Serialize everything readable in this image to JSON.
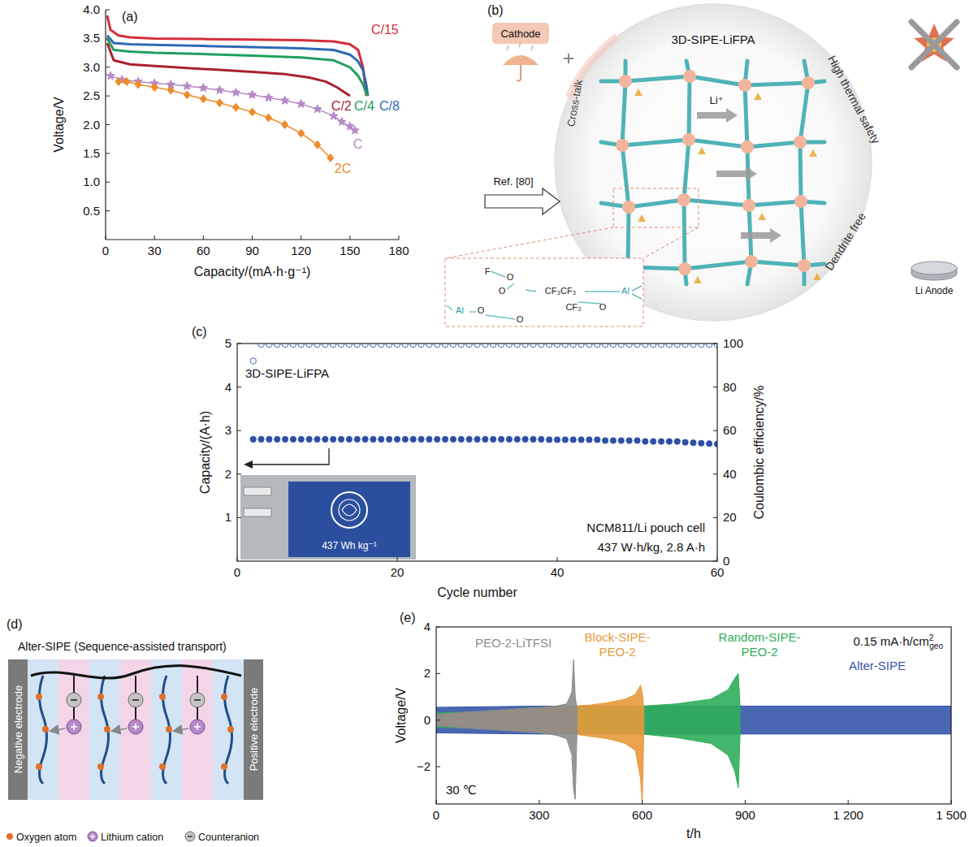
{
  "chart_data": [
    {
      "type": "line",
      "panel": "(a)",
      "x_label": "Capacity/(mA·h·g⁻¹)",
      "y_label": "Voltage/V",
      "xlim": [
        0,
        180
      ],
      "ylim": [
        0,
        4
      ],
      "xticks": [
        0,
        30,
        60,
        90,
        120,
        150,
        180
      ],
      "yticks": [
        0.5,
        {
          "value": 1,
          "label": "1.0"
        },
        1.5,
        {
          "value": 2,
          "label": "2.0"
        },
        2.5,
        {
          "value": 3,
          "label": "3.0"
        },
        3.5,
        {
          "value": 4,
          "label": "4.0"
        }
      ],
      "grid": false,
      "series": [
        {
          "name": "C/15",
          "color": "#d42e3c",
          "marker": "none",
          "line_style": "solid",
          "x": [
            1,
            3,
            8,
            15,
            30,
            60,
            90,
            120,
            140,
            150,
            155,
            158,
            160
          ],
          "values": [
            3.9,
            3.65,
            3.55,
            3.52,
            3.5,
            3.49,
            3.48,
            3.47,
            3.45,
            3.4,
            3.3,
            3.0,
            2.5
          ]
        },
        {
          "name": "C/8",
          "color": "#2d6ab5",
          "marker": "none",
          "line_style": "solid",
          "x": [
            1,
            5,
            15,
            30,
            60,
            90,
            120,
            140,
            150,
            155,
            158,
            160,
            161
          ],
          "values": [
            3.55,
            3.42,
            3.4,
            3.39,
            3.37,
            3.35,
            3.33,
            3.3,
            3.22,
            3.1,
            2.95,
            2.7,
            2.5
          ]
        },
        {
          "name": "C/4",
          "color": "#20a060",
          "marker": "none",
          "line_style": "solid",
          "x": [
            1,
            5,
            15,
            30,
            60,
            90,
            120,
            140,
            150,
            155,
            158,
            160,
            161
          ],
          "values": [
            3.5,
            3.3,
            3.27,
            3.25,
            3.23,
            3.2,
            3.17,
            3.12,
            3.0,
            2.85,
            2.7,
            2.55,
            2.5
          ]
        },
        {
          "name": "C/2",
          "color": "#a8222e",
          "marker": "none",
          "line_style": "solid",
          "x": [
            1,
            5,
            15,
            30,
            60,
            90,
            110,
            125,
            135,
            142,
            150
          ],
          "values": [
            3.42,
            3.12,
            3.05,
            3.02,
            2.97,
            2.92,
            2.88,
            2.82,
            2.75,
            2.65,
            2.5
          ]
        },
        {
          "name": "C",
          "color": "#b58ac8",
          "marker": "star",
          "line_style": "solid",
          "x": [
            3,
            10,
            20,
            30,
            40,
            50,
            60,
            70,
            80,
            90,
            100,
            110,
            120,
            130,
            140,
            145,
            150,
            153
          ],
          "values": [
            2.85,
            2.78,
            2.75,
            2.72,
            2.7,
            2.67,
            2.64,
            2.6,
            2.56,
            2.52,
            2.47,
            2.42,
            2.36,
            2.27,
            2.15,
            2.05,
            1.97,
            1.9
          ]
        },
        {
          "name": "2C",
          "color": "#ee8a2a",
          "marker": "diamond",
          "line_style": "solid",
          "x": [
            8,
            13,
            20,
            30,
            40,
            50,
            60,
            70,
            80,
            90,
            100,
            110,
            120,
            130,
            138
          ],
          "values": [
            2.75,
            2.75,
            2.7,
            2.65,
            2.6,
            2.52,
            2.45,
            2.38,
            2.3,
            2.22,
            2.12,
            2.0,
            1.85,
            1.65,
            1.42
          ]
        }
      ]
    },
    {
      "type": "scatter",
      "panel": "(c)",
      "x_label": "Cycle number",
      "y_label": "Capacity/(A·h)",
      "y2_label": "Coulombic efficiency/%",
      "xlim": [
        0,
        60
      ],
      "ylim": [
        0,
        5
      ],
      "y2lim": [
        0,
        100
      ],
      "xticks": [
        0,
        20,
        40,
        60
      ],
      "yticks": [
        1,
        2,
        3,
        4,
        5
      ],
      "y2ticks": [
        0,
        20,
        40,
        60,
        80,
        100
      ],
      "grid": false,
      "annotations": [
        "3D-SIPE-LiFPA",
        "NCM811/Li pouch cell",
        "437 W·h/kg, 2.8 A·h"
      ],
      "inset_label": "437 Wh kg⁻¹",
      "x": [
        2,
        3,
        4,
        5,
        6,
        7,
        8,
        9,
        10,
        11,
        12,
        13,
        14,
        15,
        16,
        17,
        18,
        19,
        20,
        21,
        22,
        23,
        24,
        25,
        26,
        27,
        28,
        29,
        30,
        31,
        32,
        33,
        34,
        35,
        36,
        37,
        38,
        39,
        40,
        41,
        42,
        43,
        44,
        45,
        46,
        47,
        48,
        49,
        50,
        51,
        52,
        53,
        54,
        55,
        56,
        57,
        58,
        59,
        60
      ],
      "series": [
        {
          "color": "#2e4fa8",
          "marker": "circle",
          "values": [
            2.8,
            2.8,
            2.8,
            2.8,
            2.8,
            2.8,
            2.8,
            2.8,
            2.8,
            2.8,
            2.8,
            2.8,
            2.8,
            2.8,
            2.8,
            2.8,
            2.8,
            2.8,
            2.8,
            2.8,
            2.8,
            2.8,
            2.8,
            2.8,
            2.8,
            2.8,
            2.8,
            2.8,
            2.8,
            2.8,
            2.8,
            2.8,
            2.8,
            2.8,
            2.8,
            2.8,
            2.8,
            2.79,
            2.79,
            2.79,
            2.79,
            2.79,
            2.79,
            2.79,
            2.77,
            2.77,
            2.77,
            2.77,
            2.77,
            2.75,
            2.75,
            2.75,
            2.75,
            2.75,
            2.73,
            2.72,
            2.71,
            2.7,
            2.69
          ]
        },
        {
          "color": "#6f86cc",
          "marker": "open-circle",
          "axis": "y2",
          "values": [
            92,
            99.6,
            99.6,
            99.6,
            99.6,
            99.6,
            99.6,
            99.6,
            99.6,
            99.6,
            99.6,
            99.6,
            99.6,
            99.6,
            99.6,
            99.6,
            99.6,
            99.6,
            99.6,
            99.6,
            99.6,
            99.6,
            99.6,
            99.6,
            99.6,
            99.6,
            99.6,
            99.6,
            99.6,
            99.6,
            99.6,
            99.6,
            99.6,
            99.6,
            99.6,
            99.6,
            99.6,
            99.6,
            99.6,
            99.6,
            99.6,
            99.6,
            99.6,
            99.6,
            99.6,
            99.6,
            99.6,
            99.6,
            99.6,
            99.6,
            99.6,
            99.6,
            99.6,
            99.6,
            99.6,
            99.6,
            99.6,
            99.6,
            99.6
          ]
        }
      ]
    },
    {
      "type": "area",
      "panel": "(e)",
      "x_label": "t/h",
      "y_label": "Voltage/V",
      "xlim": [
        0,
        1500
      ],
      "ylim": [
        -3.6,
        4
      ],
      "xticks": [
        0,
        300,
        600,
        900,
        {
          "value": 1200,
          "label": "1 200"
        },
        {
          "value": 1500,
          "label": "1 500"
        }
      ],
      "yticks": [
        {
          "value": -2,
          "label": "−2"
        },
        0,
        2,
        4
      ],
      "grid": false,
      "capacity_label": {
        "text": "0.15 mA·h/cm",
        "sup": "2",
        "sub": "geo"
      },
      "temperature_label": "30 ℃",
      "series": [
        {
          "name": "PEO-2-LiTFSI",
          "color": "#8c8c8c",
          "x": [
            0,
            50,
            100,
            150,
            200,
            250,
            300,
            350,
            380,
            395,
            400,
            405,
            410
          ],
          "values": [
            0.25,
            0.3,
            0.35,
            0.4,
            0.45,
            0.5,
            0.55,
            0.6,
            0.7,
            1.2,
            2.6,
            1.0,
            0.5
          ],
          "lower": [
            -0.25,
            -0.3,
            -0.35,
            -0.4,
            -0.45,
            -0.5,
            -0.55,
            -0.65,
            -0.8,
            -1.5,
            -3.0,
            -3.4,
            -0.5
          ]
        },
        {
          "name": "Block-SIPE-PEO-2",
          "color": "#e89a3c",
          "x": [
            0,
            100,
            200,
            300,
            400,
            450,
            500,
            550,
            580,
            595,
            600,
            605
          ],
          "values": [
            0.2,
            0.3,
            0.4,
            0.5,
            0.6,
            0.65,
            0.75,
            0.9,
            1.1,
            1.5,
            1.2,
            0.5
          ],
          "lower": [
            -0.2,
            -0.3,
            -0.4,
            -0.5,
            -0.6,
            -0.7,
            -0.8,
            -1.0,
            -1.3,
            -2.5,
            -3.6,
            -0.5
          ]
        },
        {
          "name": "Random-SIPE-PEO-2",
          "color": "#2eae5a",
          "x": [
            0,
            100,
            200,
            300,
            400,
            500,
            600,
            700,
            800,
            850,
            870,
            880,
            885
          ],
          "values": [
            0.3,
            0.35,
            0.4,
            0.45,
            0.5,
            0.55,
            0.6,
            0.7,
            0.9,
            1.3,
            1.8,
            2.0,
            0.6
          ],
          "lower": [
            -0.3,
            -0.35,
            -0.4,
            -0.45,
            -0.5,
            -0.55,
            -0.6,
            -0.75,
            -1.0,
            -1.5,
            -2.2,
            -2.9,
            -0.6
          ]
        },
        {
          "name": "Alter-SIPE",
          "color": "#3656a8",
          "x": [
            0,
            300,
            600,
            900,
            1200,
            1500
          ],
          "values": [
            0.55,
            0.6,
            0.6,
            0.6,
            0.6,
            0.6
          ],
          "lower": [
            -0.55,
            -0.6,
            -0.6,
            -0.6,
            -0.6,
            -0.6
          ]
        }
      ]
    }
  ],
  "diagrams": {
    "b": {
      "panel": "(b)",
      "title": "3D-SIPE-LiFPA",
      "cathode": "Cathode",
      "cross_talk": "Cross-talk",
      "thermal": "High thermal safety",
      "dendrite": "Dendrite free",
      "anode": "Li Anode",
      "ion": "Li⁺",
      "reference": "Ref. [80]",
      "molecule": [
        "F",
        "O",
        "O",
        "CF₃CF₃",
        "CF₃",
        "Al",
        "O",
        "Al",
        "O",
        "O"
      ]
    },
    "d": {
      "panel": "(d)",
      "title": "Alter-SIPE (Sequence-assisted transport)",
      "negative": "Negative electrode",
      "positive": "Positive electrode",
      "key_items": [
        "Oxygen atom",
        "Lithium cation",
        "Counteranion"
      ]
    }
  }
}
